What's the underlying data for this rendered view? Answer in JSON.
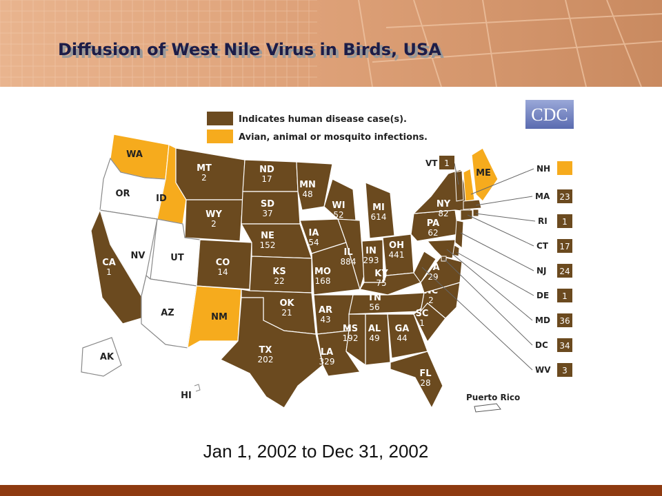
{
  "header": {
    "title": "Diffusion of West Nile Virus in Birds, USA"
  },
  "colors": {
    "human": "#6b4a1f",
    "avian": "#f6ab1d",
    "none": "#ffffff"
  },
  "legend": [
    {
      "label": "Indicates human disease case(s).",
      "status": "human"
    },
    {
      "label": "Avian, animal or mosquito infections.",
      "status": "avian"
    }
  ],
  "logo": "CDC",
  "states": [
    {
      "abbr": "WA",
      "status": "avian"
    },
    {
      "abbr": "OR",
      "status": "none"
    },
    {
      "abbr": "ID",
      "status": "avian"
    },
    {
      "abbr": "MT",
      "cases": 2,
      "status": "human"
    },
    {
      "abbr": "WY",
      "cases": 2,
      "status": "human"
    },
    {
      "abbr": "NV",
      "status": "none"
    },
    {
      "abbr": "UT",
      "status": "none"
    },
    {
      "abbr": "CA",
      "cases": 1,
      "status": "human"
    },
    {
      "abbr": "AZ",
      "status": "none"
    },
    {
      "abbr": "CO",
      "cases": 14,
      "status": "human"
    },
    {
      "abbr": "NM",
      "status": "avian"
    },
    {
      "abbr": "ND",
      "cases": 17,
      "status": "human"
    },
    {
      "abbr": "SD",
      "cases": 37,
      "status": "human"
    },
    {
      "abbr": "NE",
      "cases": 152,
      "status": "human"
    },
    {
      "abbr": "KS",
      "cases": 22,
      "status": "human"
    },
    {
      "abbr": "OK",
      "cases": 21,
      "status": "human"
    },
    {
      "abbr": "TX",
      "cases": 202,
      "status": "human"
    },
    {
      "abbr": "MN",
      "cases": 48,
      "status": "human"
    },
    {
      "abbr": "IA",
      "cases": 54,
      "status": "human"
    },
    {
      "abbr": "MO",
      "cases": 168,
      "status": "human"
    },
    {
      "abbr": "AR",
      "cases": 43,
      "status": "human"
    },
    {
      "abbr": "LA",
      "cases": 329,
      "status": "human"
    },
    {
      "abbr": "WI",
      "cases": 52,
      "status": "human"
    },
    {
      "abbr": "IL",
      "cases": 884,
      "status": "human"
    },
    {
      "abbr": "MI",
      "cases": 614,
      "status": "human"
    },
    {
      "abbr": "IN",
      "cases": 293,
      "status": "human"
    },
    {
      "abbr": "OH",
      "cases": 441,
      "status": "human"
    },
    {
      "abbr": "KY",
      "cases": 75,
      "status": "human"
    },
    {
      "abbr": "TN",
      "cases": 56,
      "status": "human"
    },
    {
      "abbr": "MS",
      "cases": 192,
      "status": "human"
    },
    {
      "abbr": "AL",
      "cases": 49,
      "status": "human"
    },
    {
      "abbr": "GA",
      "cases": 44,
      "status": "human"
    },
    {
      "abbr": "FL",
      "cases": 28,
      "status": "human"
    },
    {
      "abbr": "SC",
      "cases": 1,
      "status": "human"
    },
    {
      "abbr": "NC",
      "cases": 2,
      "status": "human"
    },
    {
      "abbr": "VA",
      "cases": 29,
      "status": "human"
    },
    {
      "abbr": "PA",
      "cases": 62,
      "status": "human"
    },
    {
      "abbr": "NY",
      "cases": 82,
      "status": "human"
    },
    {
      "abbr": "ME",
      "status": "avian"
    },
    {
      "abbr": "AK",
      "status": "none"
    },
    {
      "abbr": "HI",
      "status": "none"
    }
  ],
  "callouts": [
    {
      "abbr": "VT",
      "cases": 1,
      "status": "human"
    },
    {
      "abbr": "NH",
      "status": "avian"
    },
    {
      "abbr": "MA",
      "cases": 23,
      "status": "human"
    },
    {
      "abbr": "RI",
      "cases": 1,
      "status": "human"
    },
    {
      "abbr": "CT",
      "cases": 17,
      "status": "human"
    },
    {
      "abbr": "NJ",
      "cases": 24,
      "status": "human"
    },
    {
      "abbr": "DE",
      "cases": 1,
      "status": "human"
    },
    {
      "abbr": "MD",
      "cases": 36,
      "status": "human"
    },
    {
      "abbr": "DC",
      "cases": 34,
      "status": "human"
    },
    {
      "abbr": "WV",
      "cases": 3,
      "status": "human"
    }
  ],
  "territory": "Puerto Rico",
  "date_range": "Jan 1, 2002 to Dec 31, 2002"
}
